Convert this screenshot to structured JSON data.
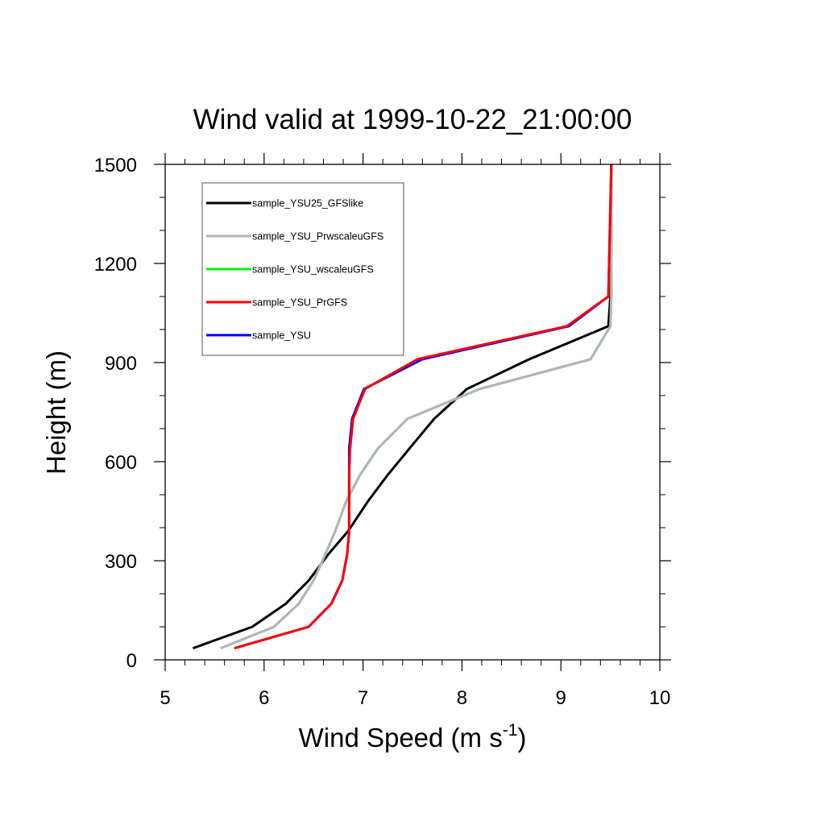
{
  "chart_data": {
    "type": "line",
    "title": "Wind valid at 1999-10-22_21:00:00",
    "xlabel": "Wind Speed (m s",
    "xlabel_superscript": "-1",
    "xlabel_suffix": ")",
    "ylabel": "Height (m)",
    "xlim": [
      5,
      10
    ],
    "ylim": [
      0,
      1500
    ],
    "xticks": [
      5,
      6,
      7,
      8,
      9,
      10
    ],
    "yticks": [
      0,
      300,
      600,
      900,
      1200,
      1500
    ],
    "xtick_labels": [
      "5",
      "6",
      "7",
      "8",
      "9",
      "10"
    ],
    "ytick_labels": [
      "0",
      "300",
      "600",
      "900",
      "1200",
      "1500"
    ],
    "grid": false,
    "legend_position": "top-left",
    "series": [
      {
        "name": "sample_YSU25_GFSlike",
        "color": "#000000",
        "x": [
          5.28,
          5.88,
          6.22,
          6.45,
          6.65,
          6.85,
          7.05,
          7.25,
          7.47,
          7.72,
          8.05,
          8.68,
          9.48,
          9.5,
          9.51
        ],
        "y": [
          35,
          100,
          170,
          240,
          320,
          390,
          480,
          560,
          640,
          730,
          820,
          910,
          1010,
          1100,
          1500
        ]
      },
      {
        "name": "sample_YSU_PrwscaleuGFS",
        "color": "#b4b4b4",
        "x": [
          5.56,
          6.1,
          6.35,
          6.5,
          6.62,
          6.72,
          6.83,
          6.97,
          7.15,
          7.45,
          8.18,
          9.3,
          9.5,
          9.51,
          9.51
        ],
        "y": [
          35,
          100,
          170,
          240,
          320,
          390,
          480,
          560,
          640,
          730,
          820,
          910,
          1010,
          1100,
          1500
        ]
      },
      {
        "name": "sample_YSU_wscaleuGFS",
        "color": "#00ff00",
        "x": [
          5.56,
          6.1,
          6.35,
          6.5,
          6.62,
          6.72,
          6.83,
          6.97,
          7.15,
          7.45,
          8.18,
          9.3,
          9.5,
          9.51,
          9.51
        ],
        "y": [
          35,
          100,
          170,
          240,
          320,
          390,
          480,
          560,
          640,
          730,
          820,
          910,
          1010,
          1100,
          1500
        ]
      },
      {
        "name": "sample_YSU_PrGFS",
        "color": "#ff0000",
        "x": [
          5.7,
          6.45,
          6.68,
          6.79,
          6.84,
          6.86,
          6.86,
          6.86,
          6.87,
          6.9,
          7.02,
          7.55,
          9.06,
          9.48,
          9.51
        ],
        "y": [
          35,
          100,
          170,
          240,
          320,
          390,
          480,
          560,
          640,
          730,
          820,
          910,
          1010,
          1100,
          1500
        ]
      },
      {
        "name": "sample_YSU",
        "color": "#0000ff",
        "x": [
          5.7,
          6.45,
          6.68,
          6.79,
          6.84,
          6.86,
          6.86,
          6.86,
          6.86,
          6.89,
          7.01,
          7.6,
          9.08,
          9.48,
          9.51
        ],
        "y": [
          35,
          100,
          170,
          240,
          320,
          390,
          480,
          560,
          640,
          730,
          820,
          910,
          1010,
          1100,
          1500
        ]
      }
    ],
    "draw_order": [
      0,
      2,
      1,
      4,
      3
    ]
  }
}
